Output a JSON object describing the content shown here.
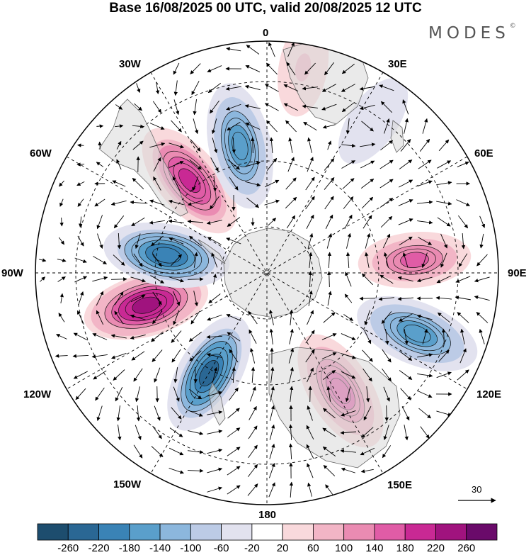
{
  "title": "Base 16/08/2025 00 UTC, valid 20/08/2025 12 UTC",
  "brand": {
    "name": "MODES",
    "mark": "©"
  },
  "longitude_labels": {
    "lon_0": "0",
    "lon_30e": "30E",
    "lon_60e": "60E",
    "lon_90e": "90E",
    "lon_120e": "120E",
    "lon_150e": "150E",
    "lon_180": "180",
    "lon_150w": "150W",
    "lon_120w": "120W",
    "lon_90w": "90W",
    "lon_60w": "60W",
    "lon_30w": "30W"
  },
  "vector_scale": {
    "label": "30"
  },
  "colorbar": {
    "ticks": [
      "-260",
      "-220",
      "-180",
      "-140",
      "-100",
      "-60",
      "-20",
      "20",
      "60",
      "100",
      "140",
      "180",
      "220",
      "260"
    ],
    "colors": [
      "#1d4d6e",
      "#2a6794",
      "#3a83b6",
      "#5a9fcb",
      "#8cb7dd",
      "#bccbe6",
      "#e2e2ef",
      "#ffffff",
      "#f9d9dc",
      "#f2b5c6",
      "#ea8bb2",
      "#e05ca6",
      "#c92994",
      "#a0137e",
      "#6a0a6a"
    ]
  },
  "anomaly_centers": [
    {
      "name": "south-pacific-high",
      "lon": -105,
      "colat_deg": 27,
      "value": 240
    },
    {
      "name": "amundsen-low",
      "lon": -80,
      "colat_deg": 22,
      "value": -220
    },
    {
      "name": "s-atlantic-high",
      "lon": -40,
      "colat_deg": 26,
      "value": 200
    },
    {
      "name": "weddell-low",
      "lon": -12,
      "colat_deg": 28,
      "value": -180
    },
    {
      "name": "indian-ocean-low",
      "lon": 35,
      "colat_deg": 40,
      "value": -60
    },
    {
      "name": "east-indian-high",
      "lon": 85,
      "colat_deg": 32,
      "value": 150
    },
    {
      "name": "sw-australia-low",
      "lon": 112,
      "colat_deg": 35,
      "value": -180
    },
    {
      "name": "australia-high",
      "lon": 148,
      "colat_deg": 30,
      "value": 170
    },
    {
      "name": "ross-low",
      "lon": -150,
      "colat_deg": 25,
      "value": -240
    },
    {
      "name": "near-pole-high",
      "lon": 10,
      "colat_deg": 45,
      "value": 60
    }
  ]
}
